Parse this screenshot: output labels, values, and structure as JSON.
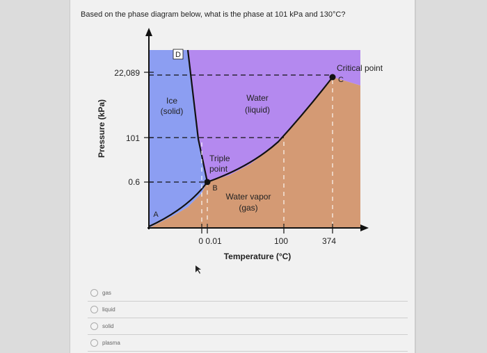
{
  "question": {
    "text": "Based on the phase diagram below, what is the phase at 101 kPa and 130°C?"
  },
  "diagram": {
    "y_axis_title": "Pressure (kPa)",
    "x_axis_title": "Temperature (°C)",
    "y_ticks": [
      "22,089",
      "101",
      "0.6"
    ],
    "x_ticks": [
      "0 0.01",
      "100",
      "374"
    ],
    "regions": {
      "solid": {
        "line1": "Ice",
        "line2": "(solid)"
      },
      "liquid": {
        "line1": "Water",
        "line2": "(liquid)"
      },
      "gas": {
        "line1": "Water vapor",
        "line2": "(gas)"
      }
    },
    "points": {
      "triple_line1": "Triple",
      "triple_line2": "point",
      "critical": "Critical point",
      "A": "A",
      "B": "B",
      "C": "C",
      "D": "D"
    },
    "colors": {
      "solid": "#8c9ef2",
      "liquid": "#b489ef",
      "gas": "#d49a74",
      "curve": "#111111"
    }
  },
  "choices": [
    {
      "label": "gas"
    },
    {
      "label": "liquid"
    },
    {
      "label": "solid"
    },
    {
      "label": "plasma"
    }
  ]
}
